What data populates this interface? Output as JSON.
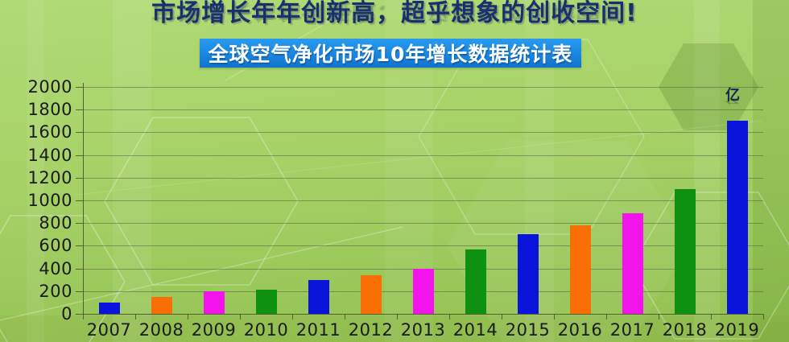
{
  "header": {
    "title": "市场增长年年创新高，超乎想象的创收空间!",
    "banner_title": "全球空气净化市场10年增长数据统计表"
  },
  "chart_data": {
    "type": "bar",
    "title": "全球空气净化市场10年增长数据统计表",
    "unit_label": "亿",
    "categories": [
      "2007",
      "2008",
      "2009",
      "2010",
      "2011",
      "2012",
      "2013",
      "2014",
      "2015",
      "2016",
      "2017",
      "2018",
      "2019"
    ],
    "values": [
      100,
      150,
      200,
      210,
      300,
      340,
      400,
      570,
      700,
      780,
      890,
      1100,
      1700
    ],
    "bar_color_cycle": [
      "#0a14db",
      "#fa6e06",
      "#f214ea",
      "#0e9010"
    ],
    "ylim": [
      0,
      2000
    ],
    "y_step": 200,
    "grid": true,
    "legend": false,
    "xlabel": "",
    "ylabel": "",
    "colors": {
      "title_text": "#16306d",
      "banner_bg": "#1b86df",
      "banner_text": "#ffffff",
      "axis_text": "#1b1b1b",
      "gridline": "#585e40",
      "background_green": "#a3ce62"
    }
  }
}
